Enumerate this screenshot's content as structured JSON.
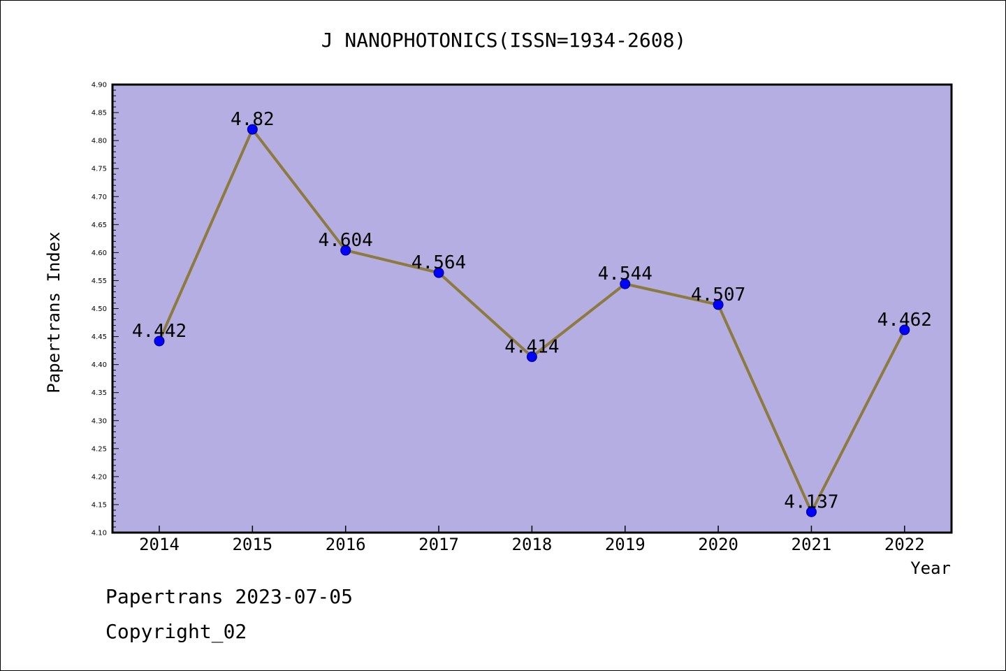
{
  "chart_data": {
    "type": "line",
    "title": "J NANOPHOTONICS(ISSN=1934-2608)",
    "xlabel": "Year",
    "ylabel": "Papertrans Index",
    "categories": [
      "2014",
      "2015",
      "2016",
      "2017",
      "2018",
      "2019",
      "2020",
      "2021",
      "2022"
    ],
    "series": [
      {
        "values": [
          4.442,
          4.82,
          4.604,
          4.564,
          4.414,
          4.544,
          4.507,
          4.137,
          4.462
        ],
        "data_labels": [
          "4.442",
          "4.82",
          "4.604",
          "4.564",
          "4.414",
          "4.544",
          "4.507",
          "4.137",
          "4.462"
        ]
      }
    ],
    "ylim": [
      4.1,
      4.9
    ],
    "yticks": [
      "4.10",
      "4.15",
      "4.20",
      "4.25",
      "4.30",
      "4.35",
      "4.40",
      "4.45",
      "4.50",
      "4.55",
      "4.60",
      "4.65",
      "4.70",
      "4.75",
      "4.80",
      "4.85",
      "4.90"
    ],
    "grid": false,
    "legend": "none",
    "colors": {
      "plot_background": "#b4aee2",
      "line": "#8c7a3e",
      "marker_fill": "#0000ff",
      "marker_stroke": "#000080",
      "axis": "#000000",
      "text": "#000000"
    }
  },
  "footer": {
    "date_line": "Papertrans 2023-07-05",
    "copyright_line": "Copyright_02"
  }
}
